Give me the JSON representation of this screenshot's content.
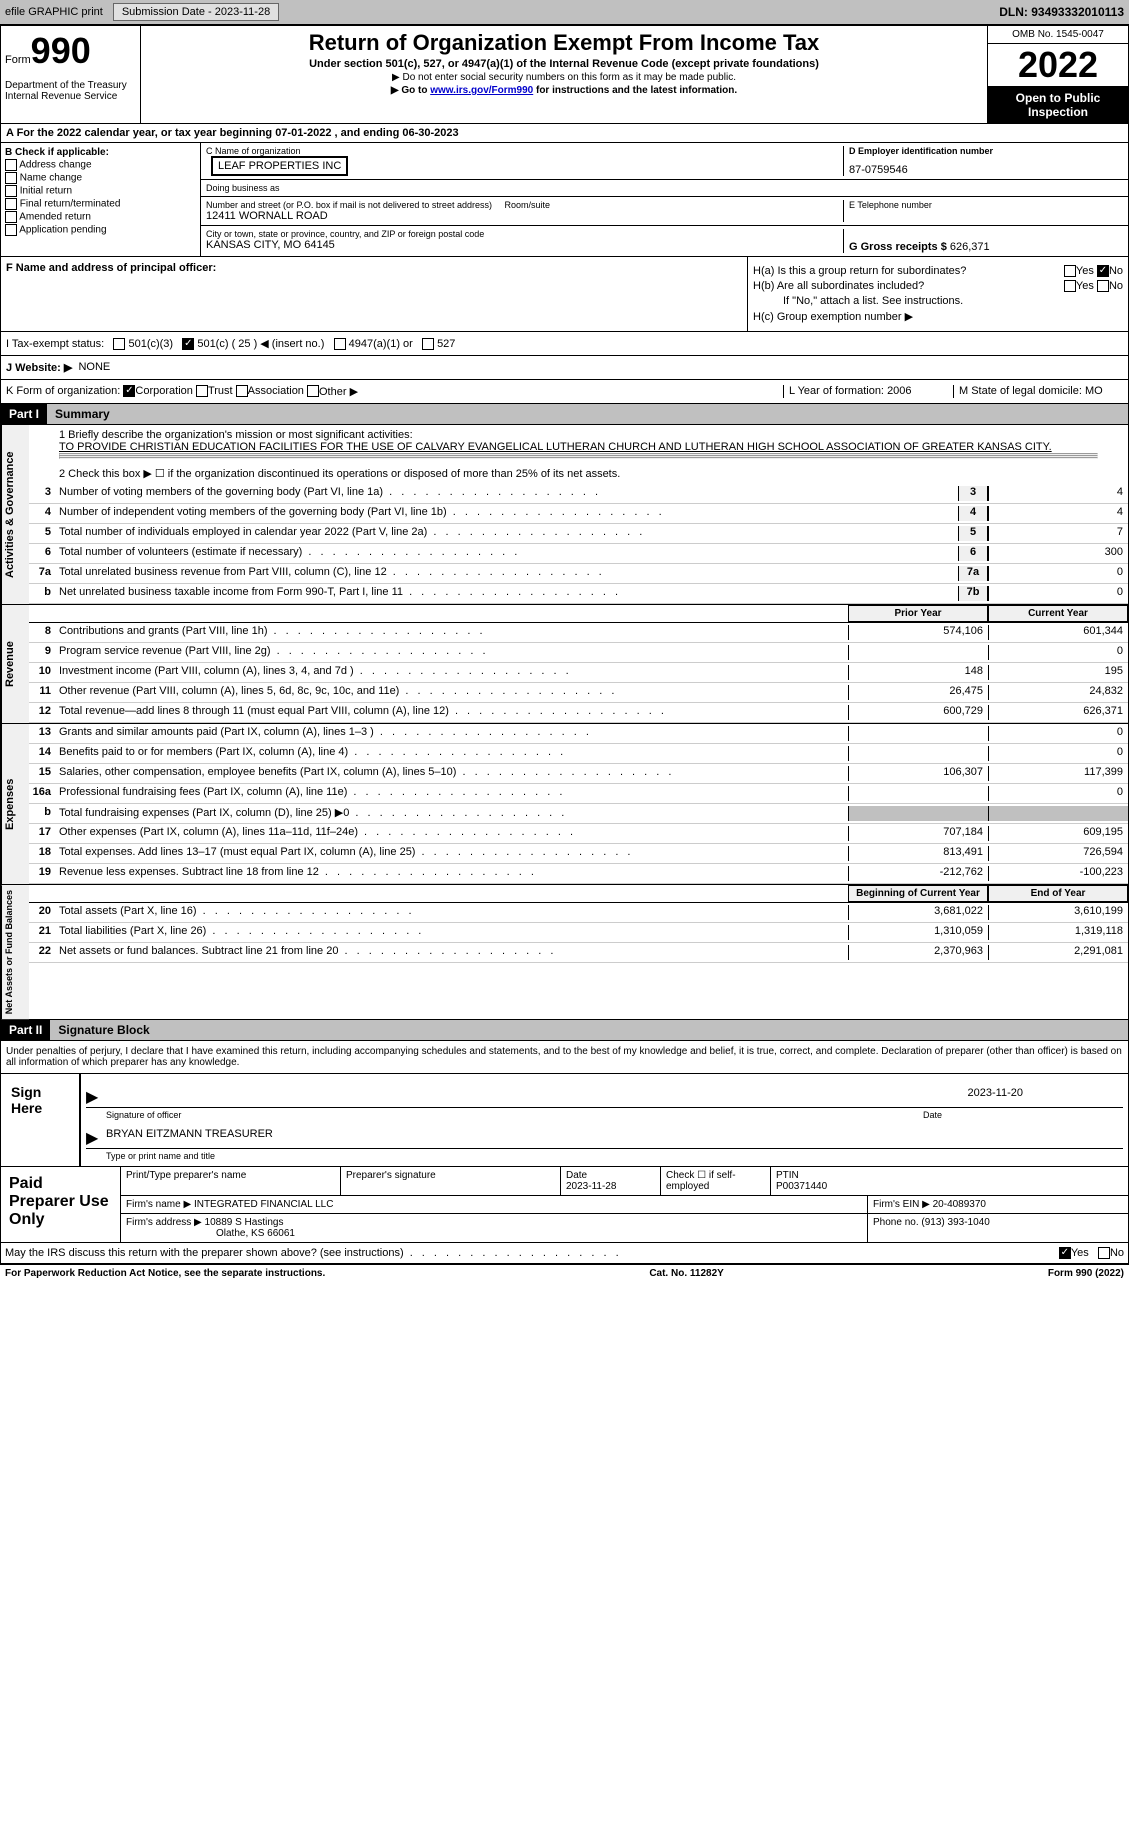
{
  "topbar": {
    "efile": "efile GRAPHIC print",
    "submission": "Submission Date - 2023-11-28",
    "dln": "DLN: 93493332010113"
  },
  "header": {
    "form_label": "Form",
    "form_num": "990",
    "dept": "Department of the Treasury\nInternal Revenue Service",
    "title": "Return of Organization Exempt From Income Tax",
    "subtitle": "Under section 501(c), 527, or 4947(a)(1) of the Internal Revenue Code (except private foundations)",
    "note1": "▶ Do not enter social security numbers on this form as it may be made public.",
    "note2": "▶ Go to www.irs.gov/Form990 for instructions and the latest information.",
    "omb": "OMB No. 1545-0047",
    "year": "2022",
    "inspection": "Open to Public Inspection"
  },
  "rowA": "A For the 2022 calendar year, or tax year beginning 07-01-2022    , and ending 06-30-2023",
  "colB": {
    "heading": "B Check if applicable:",
    "items": [
      "Address change",
      "Name change",
      "Initial return",
      "Final return/terminated",
      "Amended return",
      "Application pending"
    ]
  },
  "colC": {
    "name_label": "C Name of organization",
    "name": "LEAF PROPERTIES INC",
    "dba_label": "Doing business as",
    "addr_label": "Number and street (or P.O. box if mail is not delivered to street address)",
    "room_label": "Room/suite",
    "addr": "12411 WORNALL ROAD",
    "city_label": "City or town, state or province, country, and ZIP or foreign postal code",
    "city": "KANSAS CITY, MO  64145"
  },
  "colD": {
    "ein_label": "D Employer identification number",
    "ein": "87-0759546",
    "phone_label": "E Telephone number",
    "gross_label": "G Gross receipts $",
    "gross": "626,371"
  },
  "colF": {
    "label": "F Name and address of principal officer:"
  },
  "colH": {
    "a": "H(a)  Is this a group return for subordinates?",
    "b": "H(b)  Are all subordinates included?",
    "note": "If \"No,\" attach a list. See instructions.",
    "c": "H(c)  Group exemption number ▶",
    "yes": "Yes",
    "no": "No"
  },
  "rowI": {
    "label": "I   Tax-exempt status:",
    "opts": [
      "501(c)(3)",
      "501(c) ( 25 ) ◀ (insert no.)",
      "4947(a)(1) or",
      "527"
    ]
  },
  "rowJ": {
    "label": "J   Website: ▶",
    "val": "NONE"
  },
  "rowK": {
    "label": "K Form of organization:",
    "opts": [
      "Corporation",
      "Trust",
      "Association",
      "Other ▶"
    ],
    "l_label": "L Year of formation:",
    "l_val": "2006",
    "m_label": "M State of legal domicile:",
    "m_val": "MO"
  },
  "part1": {
    "hdr": "Part I",
    "title": "Summary"
  },
  "mission": {
    "label": "1   Briefly describe the organization's mission or most significant activities:",
    "text": "TO PROVIDE CHRISTIAN EDUCATION FACILITIES FOR THE USE OF CALVARY EVANGELICAL LUTHERAN CHURCH AND LUTHERAN HIGH SCHOOL ASSOCIATION OF GREATER KANSAS CITY."
  },
  "line2": "2   Check this box ▶ ☐ if the organization discontinued its operations or disposed of more than 25% of its net assets.",
  "lines_ag": [
    {
      "n": "3",
      "t": "Number of voting members of the governing body (Part VI, line 1a)",
      "b": "3",
      "v": "4"
    },
    {
      "n": "4",
      "t": "Number of independent voting members of the governing body (Part VI, line 1b)",
      "b": "4",
      "v": "4"
    },
    {
      "n": "5",
      "t": "Total number of individuals employed in calendar year 2022 (Part V, line 2a)",
      "b": "5",
      "v": "7"
    },
    {
      "n": "6",
      "t": "Total number of volunteers (estimate if necessary)",
      "b": "6",
      "v": "300"
    },
    {
      "n": "7a",
      "t": "Total unrelated business revenue from Part VIII, column (C), line 12",
      "b": "7a",
      "v": "0"
    },
    {
      "n": "b",
      "t": "Net unrelated business taxable income from Form 990-T, Part I, line 11",
      "b": "7b",
      "v": "0"
    }
  ],
  "col_hdrs": {
    "prior": "Prior Year",
    "current": "Current Year",
    "begin": "Beginning of Current Year",
    "end": "End of Year"
  },
  "lines_rev": [
    {
      "n": "8",
      "t": "Contributions and grants (Part VIII, line 1h)",
      "p": "574,106",
      "c": "601,344"
    },
    {
      "n": "9",
      "t": "Program service revenue (Part VIII, line 2g)",
      "p": "",
      "c": "0"
    },
    {
      "n": "10",
      "t": "Investment income (Part VIII, column (A), lines 3, 4, and 7d )",
      "p": "148",
      "c": "195"
    },
    {
      "n": "11",
      "t": "Other revenue (Part VIII, column (A), lines 5, 6d, 8c, 9c, 10c, and 11e)",
      "p": "26,475",
      "c": "24,832"
    },
    {
      "n": "12",
      "t": "Total revenue—add lines 8 through 11 (must equal Part VIII, column (A), line 12)",
      "p": "600,729",
      "c": "626,371"
    }
  ],
  "lines_exp": [
    {
      "n": "13",
      "t": "Grants and similar amounts paid (Part IX, column (A), lines 1–3 )",
      "p": "",
      "c": "0"
    },
    {
      "n": "14",
      "t": "Benefits paid to or for members (Part IX, column (A), line 4)",
      "p": "",
      "c": "0"
    },
    {
      "n": "15",
      "t": "Salaries, other compensation, employee benefits (Part IX, column (A), lines 5–10)",
      "p": "106,307",
      "c": "117,399"
    },
    {
      "n": "16a",
      "t": "Professional fundraising fees (Part IX, column (A), line 11e)",
      "p": "",
      "c": "0"
    },
    {
      "n": "b",
      "t": "Total fundraising expenses (Part IX, column (D), line 25) ▶0",
      "p": "shaded",
      "c": "shaded"
    },
    {
      "n": "17",
      "t": "Other expenses (Part IX, column (A), lines 11a–11d, 11f–24e)",
      "p": "707,184",
      "c": "609,195"
    },
    {
      "n": "18",
      "t": "Total expenses. Add lines 13–17 (must equal Part IX, column (A), line 25)",
      "p": "813,491",
      "c": "726,594"
    },
    {
      "n": "19",
      "t": "Revenue less expenses. Subtract line 18 from line 12",
      "p": "-212,762",
      "c": "-100,223"
    }
  ],
  "lines_net": [
    {
      "n": "20",
      "t": "Total assets (Part X, line 16)",
      "p": "3,681,022",
      "c": "3,610,199"
    },
    {
      "n": "21",
      "t": "Total liabilities (Part X, line 26)",
      "p": "1,310,059",
      "c": "1,319,118"
    },
    {
      "n": "22",
      "t": "Net assets or fund balances. Subtract line 21 from line 20",
      "p": "2,370,963",
      "c": "2,291,081"
    }
  ],
  "vtabs": {
    "ag": "Activities & Governance",
    "rev": "Revenue",
    "exp": "Expenses",
    "net": "Net Assets or Fund Balances"
  },
  "part2": {
    "hdr": "Part II",
    "title": "Signature Block",
    "penalty": "Under penalties of perjury, I declare that I have examined this return, including accompanying schedules and statements, and to the best of my knowledge and belief, it is true, correct, and complete. Declaration of preparer (other than officer) is based on all information of which preparer has any knowledge."
  },
  "sign": {
    "here": "Sign Here",
    "sig_label": "Signature of officer",
    "date_label": "Date",
    "date": "2023-11-20",
    "name": "BRYAN EITZMANN TREASURER",
    "name_label": "Type or print name and title"
  },
  "prep": {
    "hdr": "Paid Preparer Use Only",
    "name_label": "Print/Type preparer's name",
    "sig_label": "Preparer's signature",
    "date_label": "Date",
    "date": "2023-11-28",
    "check_label": "Check ☐ if self-employed",
    "ptin_label": "PTIN",
    "ptin": "P00371440",
    "firm_label": "Firm's name   ▶",
    "firm": "INTEGRATED FINANCIAL LLC",
    "ein_label": "Firm's EIN ▶",
    "ein": "20-4089370",
    "addr_label": "Firm's address ▶",
    "addr": "10889 S Hastings",
    "addr2": "Olathe, KS  66061",
    "phone_label": "Phone no.",
    "phone": "(913) 393-1040"
  },
  "footer": {
    "discuss": "May the IRS discuss this return with the preparer shown above? (see instructions)",
    "yes": "Yes",
    "no": "No",
    "pra": "For Paperwork Reduction Act Notice, see the separate instructions.",
    "cat": "Cat. No. 11282Y",
    "form": "Form 990 (2022)"
  }
}
